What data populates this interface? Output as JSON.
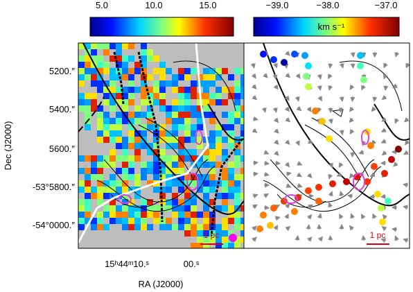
{
  "left_colorbar": {
    "ticks": [
      "5.0",
      "10.0",
      "15.0"
    ]
  },
  "right_colorbar": {
    "ticks": [
      "−39.0",
      "−38.0",
      "−37.0"
    ],
    "unit": "km s⁻¹"
  },
  "y_axis": {
    "title": "Dec (J2000)",
    "ticks": [
      "5200.″",
      "5400.″",
      "5600.″",
      "-53°5800.″",
      "-54°0000.″"
    ]
  },
  "x_axis": {
    "title": "RA (J2000)",
    "ticks": [
      "15ʰ44ᵐ10.ˢ",
      "00.ˢ"
    ]
  },
  "left_panel": {
    "scale_bar": "1 pc"
  },
  "right_panel": {
    "scale_bar": "1 pc"
  }
}
